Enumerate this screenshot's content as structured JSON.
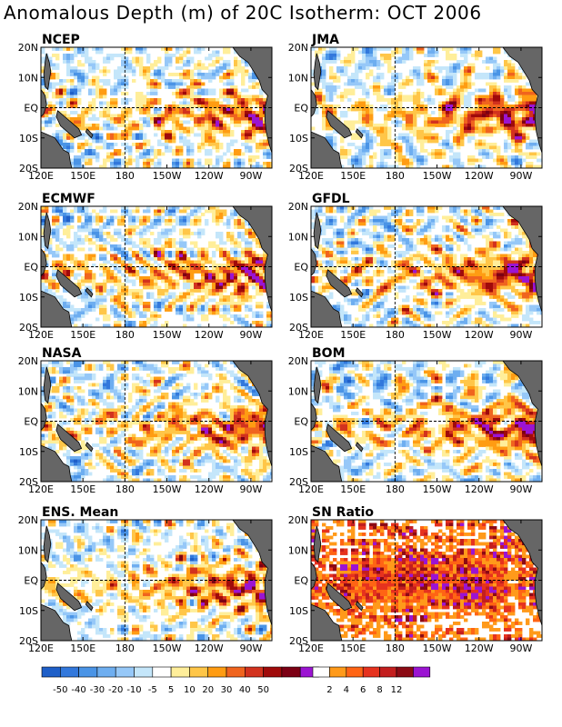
{
  "title": "Anomalous Depth (m) of 20C Isotherm: OCT 2006",
  "lat_labels": [
    "20N",
    "10N",
    "EQ",
    "10S",
    "20S"
  ],
  "lon_labels": [
    "120E",
    "150E",
    "180",
    "150W",
    "120W",
    "90W"
  ],
  "panels": [
    {
      "id": "ncep",
      "label": "NCEP",
      "seed": 3,
      "kind": "depth",
      "warm_boost": 0.3
    },
    {
      "id": "jma",
      "label": "JMA",
      "seed": 7,
      "kind": "depth",
      "warm_boost": 0.5
    },
    {
      "id": "ecmwf",
      "label": "ECMWF",
      "seed": 11,
      "kind": "depth",
      "warm_boost": 0.45
    },
    {
      "id": "gfdl",
      "label": "GFDL",
      "seed": 19,
      "kind": "depth",
      "warm_boost": 0.5
    },
    {
      "id": "nasa",
      "label": "NASA",
      "seed": 23,
      "kind": "depth",
      "warm_boost": 0.35
    },
    {
      "id": "bom",
      "label": "BOM",
      "seed": 29,
      "kind": "depth",
      "warm_boost": 0.5
    },
    {
      "id": "ens",
      "label": "ENS. Mean",
      "seed": 31,
      "kind": "depth",
      "warm_boost": 0.4
    },
    {
      "id": "sn",
      "label": "SN Ratio",
      "seed": 37,
      "kind": "sn",
      "warm_boost": 0
    }
  ],
  "depth_legend": {
    "labels": [
      "-50",
      "-40",
      "-30",
      "-20",
      "-10",
      "-5",
      "5",
      "10",
      "20",
      "30",
      "40",
      "50"
    ],
    "colors": [
      "#1e5fc8",
      "#3278dc",
      "#4a94e6",
      "#6eaef0",
      "#96c8f8",
      "#c4e6fa",
      "#ffffff",
      "#ffee9a",
      "#ffc648",
      "#ff9c12",
      "#f0641e",
      "#d2321e",
      "#a00a0a",
      "#7c0014",
      "#9b14d2"
    ]
  },
  "sn_legend": {
    "labels": [
      "2",
      "4",
      "6",
      "8",
      "12"
    ],
    "colors": [
      "#ffffff",
      "#ff9a1a",
      "#ff6414",
      "#e6321e",
      "#c31e1e",
      "#8c0a14",
      "#9b14d2"
    ]
  },
  "land_color": "#666666"
}
